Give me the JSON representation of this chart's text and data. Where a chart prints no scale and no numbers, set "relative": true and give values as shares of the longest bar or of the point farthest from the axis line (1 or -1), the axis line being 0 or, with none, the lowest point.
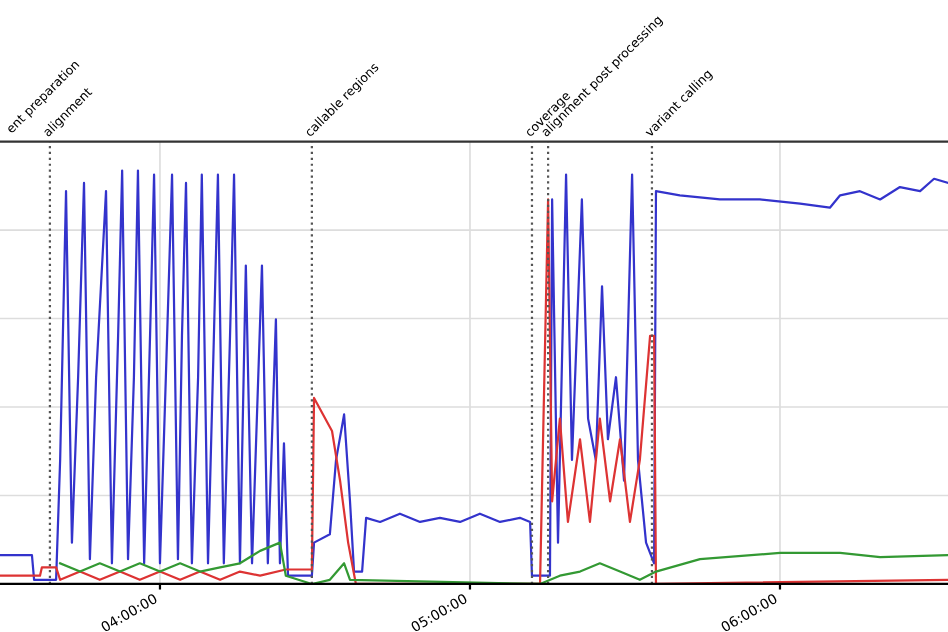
{
  "chart_data": {
    "type": "line",
    "relative": true,
    "grid": true,
    "tick_labels": "x",
    "line_style": "solid",
    "marker": "none",
    "xlim": [
      3.484,
      6.542
    ],
    "xticks": [
      {
        "value": 4,
        "label": "04:00:00"
      },
      {
        "value": 5,
        "label": "05:00:00"
      },
      {
        "value": 6,
        "label": "06:00:00"
      }
    ],
    "annotations": [
      "ent preparation"
    ],
    "ref_lines": [
      {
        "axis": "x",
        "value": 3.645,
        "label": "alignment",
        "color": "#555555",
        "line_style": "dotted"
      },
      {
        "axis": "x",
        "value": 4.49,
        "label": "callable regions",
        "color": "#555555",
        "line_style": "dotted"
      },
      {
        "axis": "x",
        "value": 5.2,
        "label": "coverage",
        "color": "#555555",
        "line_style": "dotted"
      },
      {
        "axis": "x",
        "value": 5.252,
        "label": "alignment post processing",
        "color": "#555555",
        "line_style": "dotted"
      },
      {
        "axis": "x",
        "value": 5.587,
        "label": "variant calling",
        "color": "#555555",
        "line_style": "dotted"
      }
    ],
    "series": [
      {
        "color": "#3333cc",
        "x": [
          3.484,
          3.587,
          3.594,
          3.665,
          3.678,
          3.697,
          3.716,
          3.736,
          3.755,
          3.774,
          3.794,
          3.826,
          3.845,
          3.865,
          3.878,
          3.897,
          3.916,
          3.929,
          3.949,
          3.968,
          3.981,
          4.0,
          4.019,
          4.039,
          4.058,
          4.071,
          4.084,
          4.103,
          4.123,
          4.135,
          4.155,
          4.174,
          4.187,
          4.206,
          4.226,
          4.239,
          4.258,
          4.277,
          4.297,
          4.329,
          4.348,
          4.374,
          4.387,
          4.4,
          4.413,
          4.49,
          4.497,
          4.548,
          4.568,
          4.594,
          4.613,
          4.626,
          4.652,
          4.665,
          4.71,
          4.774,
          4.839,
          4.903,
          4.968,
          5.032,
          5.097,
          5.161,
          5.194,
          5.2,
          5.258,
          5.265,
          5.284,
          5.31,
          5.329,
          5.361,
          5.381,
          5.406,
          5.426,
          5.445,
          5.471,
          5.497,
          5.523,
          5.542,
          5.568,
          5.594,
          5.6,
          5.677,
          5.806,
          5.935,
          6.065,
          6.161,
          6.194,
          6.258,
          6.323,
          6.387,
          6.452,
          6.497,
          6.542
        ],
        "values": [
          0.07,
          0.07,
          0.01,
          0.01,
          0.3,
          0.95,
          0.1,
          0.5,
          0.97,
          0.06,
          0.5,
          0.95,
          0.05,
          0.6,
          1.0,
          0.06,
          0.5,
          1.0,
          0.05,
          0.6,
          0.99,
          0.05,
          0.5,
          0.99,
          0.06,
          0.6,
          0.97,
          0.05,
          0.5,
          0.99,
          0.05,
          0.6,
          0.99,
          0.05,
          0.6,
          0.99,
          0.05,
          0.77,
          0.05,
          0.77,
          0.05,
          0.64,
          0.05,
          0.34,
          0.02,
          0.02,
          0.1,
          0.12,
          0.3,
          0.41,
          0.2,
          0.03,
          0.03,
          0.16,
          0.15,
          0.17,
          0.15,
          0.16,
          0.15,
          0.17,
          0.15,
          0.16,
          0.15,
          0.02,
          0.02,
          0.93,
          0.1,
          0.99,
          0.3,
          0.93,
          0.4,
          0.3,
          0.72,
          0.35,
          0.5,
          0.25,
          0.99,
          0.3,
          0.1,
          0.05,
          0.95,
          0.94,
          0.93,
          0.93,
          0.92,
          0.91,
          0.94,
          0.95,
          0.93,
          0.96,
          0.95,
          0.98,
          0.97
        ]
      },
      {
        "color": "#dd3333",
        "x": [
          3.484,
          3.613,
          3.619,
          3.665,
          3.678,
          3.742,
          3.806,
          3.871,
          3.935,
          4.0,
          4.065,
          4.129,
          4.194,
          4.258,
          4.323,
          4.406,
          4.49,
          4.497,
          4.555,
          4.581,
          4.607,
          4.632,
          5.226,
          5.252,
          5.265,
          5.29,
          5.316,
          5.355,
          5.387,
          5.419,
          5.452,
          5.484,
          5.516,
          5.548,
          5.581,
          5.594,
          5.6,
          6.542
        ],
        "values": [
          0.02,
          0.02,
          0.04,
          0.04,
          0.01,
          0.03,
          0.01,
          0.03,
          0.01,
          0.03,
          0.01,
          0.03,
          0.01,
          0.03,
          0.02,
          0.035,
          0.035,
          0.45,
          0.37,
          0.25,
          0.1,
          0.0,
          0.0,
          0.93,
          0.2,
          0.4,
          0.15,
          0.35,
          0.15,
          0.4,
          0.2,
          0.35,
          0.15,
          0.3,
          0.6,
          0.6,
          0.0,
          0.01
        ]
      },
      {
        "color": "#339933",
        "x": [
          3.678,
          3.742,
          3.806,
          3.871,
          3.935,
          4.0,
          4.065,
          4.129,
          4.194,
          4.258,
          4.323,
          4.387,
          4.406,
          4.49,
          4.548,
          4.594,
          4.613,
          5.226,
          5.29,
          5.355,
          5.419,
          5.484,
          5.548,
          5.6,
          5.742,
          6.0,
          6.194,
          6.323,
          6.542
        ],
        "values": [
          0.05,
          0.03,
          0.05,
          0.03,
          0.05,
          0.03,
          0.05,
          0.03,
          0.04,
          0.05,
          0.08,
          0.1,
          0.02,
          0.0,
          0.01,
          0.05,
          0.01,
          0.0,
          0.02,
          0.03,
          0.05,
          0.03,
          0.01,
          0.03,
          0.06,
          0.075,
          0.075,
          0.065,
          0.07
        ]
      }
    ]
  }
}
